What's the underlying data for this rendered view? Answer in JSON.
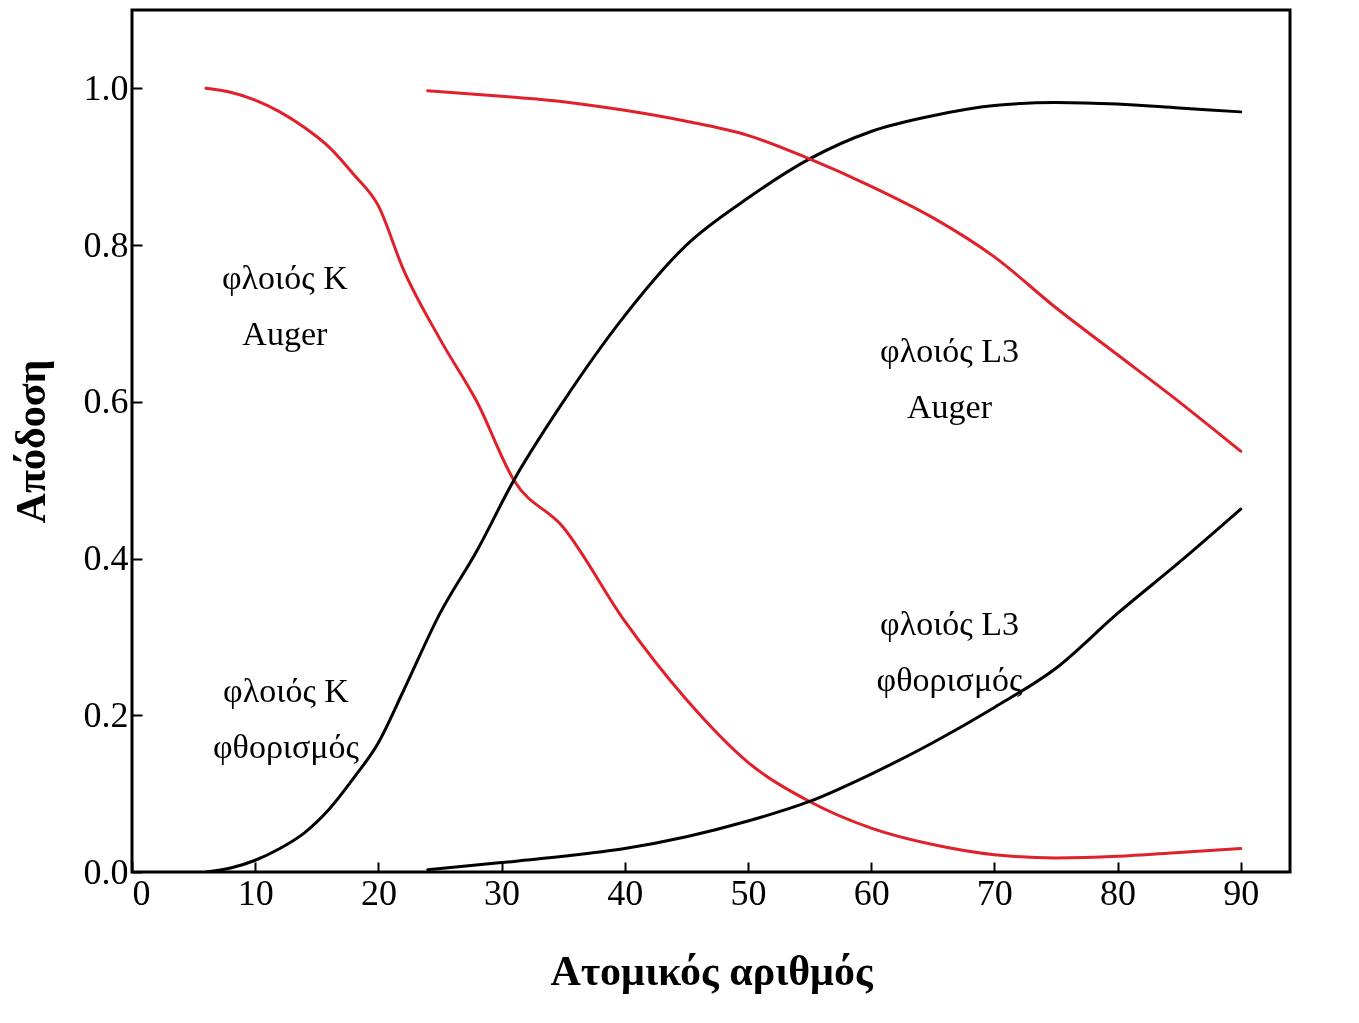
{
  "chart_data": {
    "type": "line",
    "xlabel": "Ατομικός αριθμός",
    "ylabel": "Απόδοση",
    "xlim": [
      0,
      94
    ],
    "ylim": [
      0,
      1.1
    ],
    "xticks": [
      0,
      10,
      20,
      30,
      40,
      50,
      60,
      70,
      80,
      90
    ],
    "yticks": [
      {
        "value": 0,
        "label": "0.0"
      },
      {
        "value": 0.2,
        "label": "0.2"
      },
      {
        "value": 0.4,
        "label": "0.4"
      },
      {
        "value": 0.6,
        "label": "0.6"
      },
      {
        "value": 0.8,
        "label": "0.8"
      },
      {
        "value": 1,
        "label": "1.0"
      }
    ],
    "grid": false,
    "marker": "none",
    "line_style": "solid",
    "series": [
      {
        "color": "#e0202a",
        "x": [
          6,
          8,
          10,
          12,
          14,
          16,
          18,
          20,
          22,
          25,
          28,
          31,
          35,
          40,
          45,
          50,
          55,
          60,
          65,
          70,
          75,
          80,
          85,
          90
        ],
        "values": [
          1.0,
          0.995,
          0.985,
          0.97,
          0.95,
          0.925,
          0.89,
          0.85,
          0.77,
          0.68,
          0.6,
          0.5,
          0.44,
          0.32,
          0.22,
          0.14,
          0.09,
          0.056,
          0.035,
          0.022,
          0.018,
          0.02,
          0.025,
          0.03
        ]
      },
      {
        "color": "#000000",
        "x": [
          6,
          8,
          10,
          12,
          14,
          16,
          18,
          20,
          22,
          25,
          28,
          31,
          35,
          40,
          45,
          50,
          55,
          60,
          65,
          70,
          75,
          80,
          85,
          90
        ],
        "values": [
          0,
          0.005,
          0.015,
          0.03,
          0.05,
          0.08,
          0.12,
          0.165,
          0.23,
          0.33,
          0.41,
          0.5,
          0.6,
          0.71,
          0.8,
          0.86,
          0.91,
          0.945,
          0.965,
          0.978,
          0.982,
          0.98,
          0.975,
          0.97
        ]
      },
      {
        "color": "#e0202a",
        "x": [
          24,
          30,
          35,
          40,
          45,
          50,
          55,
          60,
          65,
          70,
          75,
          80,
          85,
          90
        ],
        "values": [
          0.997,
          0.99,
          0.983,
          0.972,
          0.958,
          0.94,
          0.91,
          0.875,
          0.835,
          0.785,
          0.72,
          0.66,
          0.6,
          0.537
        ]
      },
      {
        "color": "#000000",
        "x": [
          24,
          30,
          35,
          40,
          45,
          50,
          55,
          60,
          65,
          70,
          75,
          80,
          85,
          90
        ],
        "values": [
          0.003,
          0.012,
          0.02,
          0.03,
          0.045,
          0.065,
          0.09,
          0.125,
          0.165,
          0.21,
          0.26,
          0.33,
          0.395,
          0.463
        ]
      }
    ],
    "annotations": [
      "φλοιός K\nAuger",
      "φλοιός K\nφθορισμός",
      "φλοιός L3\nAuger",
      "φλοιός L3\nφθορισμός"
    ]
  }
}
